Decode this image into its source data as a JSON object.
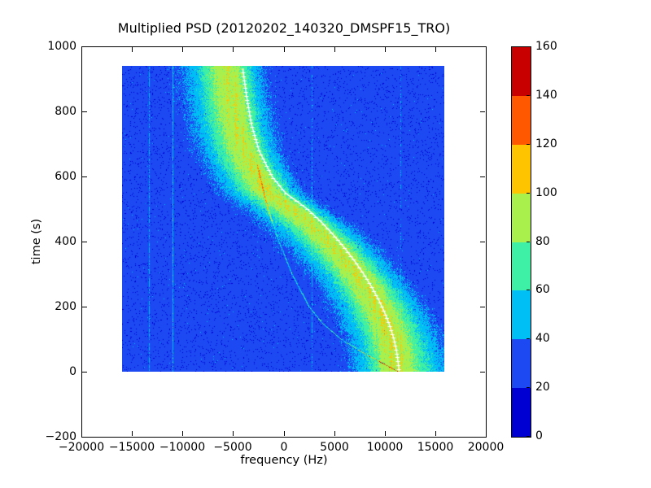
{
  "title": "Multiplied PSD (20120202_140320_DMSPF15_TRO)",
  "x_axis": {
    "label": "frequency (Hz)",
    "tick_labels": [
      "−20000",
      "−15000",
      "−10000",
      "−5000",
      "0",
      "5000",
      "10000",
      "15000",
      "20000"
    ],
    "tick_values": [
      -20000,
      -15000,
      -10000,
      -5000,
      0,
      5000,
      10000,
      15000,
      20000
    ],
    "min": -20000,
    "max": 20000
  },
  "y_axis": {
    "label": "time (s)",
    "tick_labels": [
      "1000",
      "800",
      "600",
      "400",
      "200",
      "0",
      "−200"
    ],
    "tick_values": [
      1000,
      800,
      600,
      400,
      200,
      0,
      -200
    ],
    "min": -200,
    "max": 1000
  },
  "colorbar": {
    "tick_labels": [
      "0",
      "20",
      "40",
      "60",
      "80",
      "100",
      "120",
      "140",
      "160"
    ],
    "tick_values": [
      0,
      20,
      40,
      60,
      80,
      100,
      120,
      140,
      160
    ],
    "min": 0,
    "max": 160,
    "colors": [
      "#0000d2",
      "#1c49f2",
      "#00bff5",
      "#3df0a5",
      "#aaf04d",
      "#ffc400",
      "#ff5800",
      "#c80000"
    ]
  },
  "chart_data": {
    "type": "heatmap",
    "title": "Multiplied PSD (20120202_140320_DMSPF15_TRO)",
    "xlabel": "frequency (Hz)",
    "ylabel": "time (s)",
    "xlim": [
      -20000,
      20000
    ],
    "ylim": [
      -200,
      1000
    ],
    "legend_position": "colorbar-right",
    "grid": false,
    "colormap": "jet, 8 discrete levels",
    "value_range": [
      0,
      160
    ],
    "data_extent": {
      "freq_hz": [
        -16000,
        16000
      ],
      "time_s": [
        0,
        940
      ]
    },
    "background_noise_level": 31,
    "band_peak_level": 97,
    "doppler_track_white_line": [
      [
        940,
        -4050
      ],
      [
        850,
        -3650
      ],
      [
        760,
        -3150
      ],
      [
        680,
        -2400
      ],
      [
        600,
        -1100
      ],
      [
        550,
        200
      ],
      [
        500,
        2400
      ],
      [
        460,
        3800
      ],
      [
        420,
        5000
      ],
      [
        380,
        6100
      ],
      [
        340,
        7100
      ],
      [
        300,
        8000
      ],
      [
        260,
        8800
      ],
      [
        220,
        9500
      ],
      [
        180,
        10100
      ],
      [
        140,
        10600
      ],
      [
        100,
        11000
      ],
      [
        60,
        11280
      ],
      [
        20,
        11450
      ],
      [
        0,
        11520
      ]
    ],
    "band_center_offset_hz": {
      "base": 200,
      "scale": 1200,
      "t_ref": 500
    },
    "band_half_width_hz": {
      "left_top": 3200,
      "left_bottom": 2950,
      "right_top": 2300,
      "right_bottom": 3650
    },
    "vertical_interference_lines": [
      {
        "freq_hz": -13300,
        "boost": 10
      },
      {
        "freq_hz": -10950,
        "boost": 20
      },
      {
        "freq_hz": 2800,
        "boost": 10
      },
      {
        "freq_hz": 11600,
        "boost": 7
      }
    ],
    "secondary_diagonal_track": [
      [
        640,
        -2600
      ],
      [
        500,
        -1500
      ],
      [
        400,
        -400
      ],
      [
        300,
        900
      ],
      [
        200,
        2600
      ],
      [
        150,
        3900
      ],
      [
        100,
        5800
      ],
      [
        60,
        7900
      ],
      [
        30,
        9700
      ],
      [
        0,
        11500
      ]
    ]
  }
}
